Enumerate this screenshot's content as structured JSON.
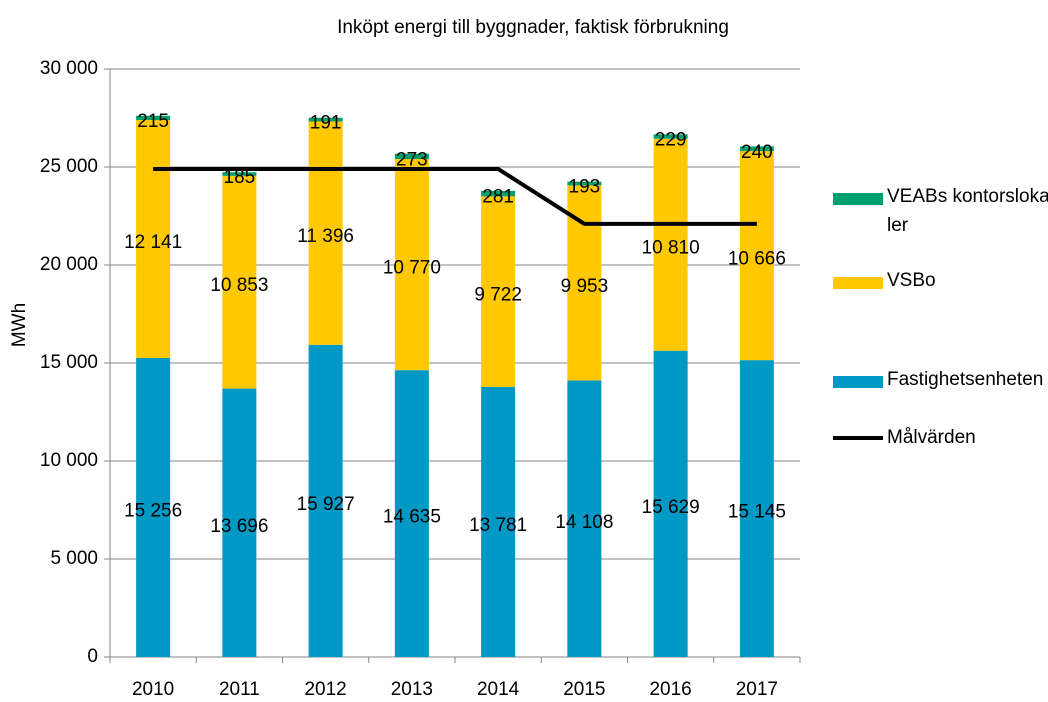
{
  "chart_data": {
    "type": "stacked_bar_line",
    "title": "Inköpt energi till byggnader, faktisk förbrukning",
    "y_label": "MWh",
    "categories": [
      "2010",
      "2011",
      "2012",
      "2013",
      "2014",
      "2015",
      "2016",
      "2017"
    ],
    "series": [
      {
        "name": "Fastighetsenheten",
        "color": "#0099c6",
        "type": "bar",
        "values": [
          15256,
          13696,
          15927,
          14635,
          13781,
          14108,
          15629,
          15145
        ],
        "value_labels": [
          "15 256",
          "13 696",
          "15 927",
          "14 635",
          "13 781",
          "14 108",
          "15 629",
          "15 145"
        ]
      },
      {
        "name": "VSBo",
        "color": "#ffc800",
        "type": "bar",
        "values": [
          12141,
          10853,
          11396,
          10770,
          9722,
          9953,
          10810,
          10666
        ],
        "value_labels": [
          "12 141",
          "10 853",
          "11 396",
          "10 770",
          "9 722",
          "9 953",
          "10 810",
          "10 666"
        ]
      },
      {
        "name": "VEABs kontorslokaler",
        "color": "#00a06e",
        "type": "bar",
        "values": [
          215,
          185,
          191,
          273,
          281,
          193,
          229,
          240
        ]
      },
      {
        "name": "Målvärden",
        "color": "#000000",
        "type": "line",
        "values": [
          24900,
          24900,
          24900,
          24900,
          24900,
          22100,
          22100,
          22100
        ]
      }
    ],
    "ylim": [
      0,
      30000
    ],
    "yticks": [
      0,
      {
        "value": 5000,
        "label": "5 000"
      },
      {
        "value": 10000,
        "label": "10 000"
      },
      {
        "value": 15000,
        "label": "15 000"
      },
      {
        "value": 20000,
        "label": "20 000"
      },
      {
        "value": 25000,
        "label": "25 000"
      },
      {
        "value": 30000,
        "label": "30 000"
      }
    ],
    "grid": true,
    "legend": "right"
  }
}
